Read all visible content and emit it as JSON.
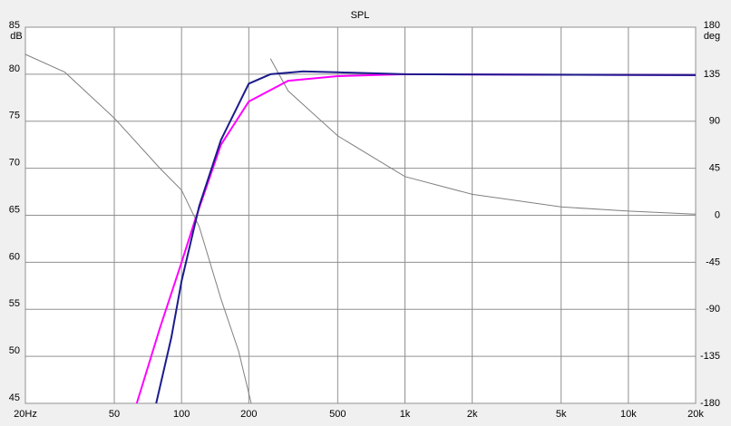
{
  "chart_data": {
    "type": "line",
    "title": "SPL",
    "y_label": "dB",
    "y2_label": "deg",
    "x_scale": "log",
    "grid": true,
    "xlim": [
      20,
      20000
    ],
    "xticks": [
      {
        "value": 20,
        "label": "20Hz"
      },
      50,
      100,
      200,
      500,
      {
        "value": 1000,
        "label": "1k"
      },
      {
        "value": 2000,
        "label": "2k"
      },
      {
        "value": 5000,
        "label": "5k"
      },
      {
        "value": 10000,
        "label": "10k"
      },
      {
        "value": 20000,
        "label": "20k"
      }
    ],
    "ylim": [
      45,
      85
    ],
    "yticks": [
      45,
      50,
      55,
      60,
      65,
      70,
      75,
      80,
      85
    ],
    "y2lim": [
      -180,
      180
    ],
    "y2ticks": [
      -180,
      -135,
      -90,
      -45,
      0,
      45,
      90,
      135,
      180
    ],
    "series": [
      {
        "color": "#808080",
        "axis": "y2",
        "x": [
          20,
          30,
          50,
          80,
          100,
          120,
          150,
          180,
          205,
          206,
          250,
          300,
          500,
          1000,
          2000,
          5000,
          10000,
          20000
        ],
        "values": [
          154,
          137,
          93,
          45,
          24,
          -11,
          -80,
          -130,
          -180,
          null,
          150,
          119,
          76,
          37,
          20,
          8,
          4,
          1
        ]
      },
      {
        "color": "#ff00ff",
        "x": [
          63,
          80,
          100,
          115,
          150,
          200,
          300,
          500,
          1000,
          20000
        ],
        "values": [
          45,
          53,
          60,
          64.5,
          72.5,
          77.1,
          79.3,
          79.8,
          80,
          79.9
        ]
      },
      {
        "color": "#1c1c8c",
        "x": [
          77,
          90,
          100,
          120,
          150,
          200,
          250,
          350,
          500,
          1000,
          20000
        ],
        "values": [
          45,
          52,
          58,
          66,
          73,
          79,
          80,
          80.3,
          80.2,
          80,
          79.9
        ]
      }
    ]
  }
}
